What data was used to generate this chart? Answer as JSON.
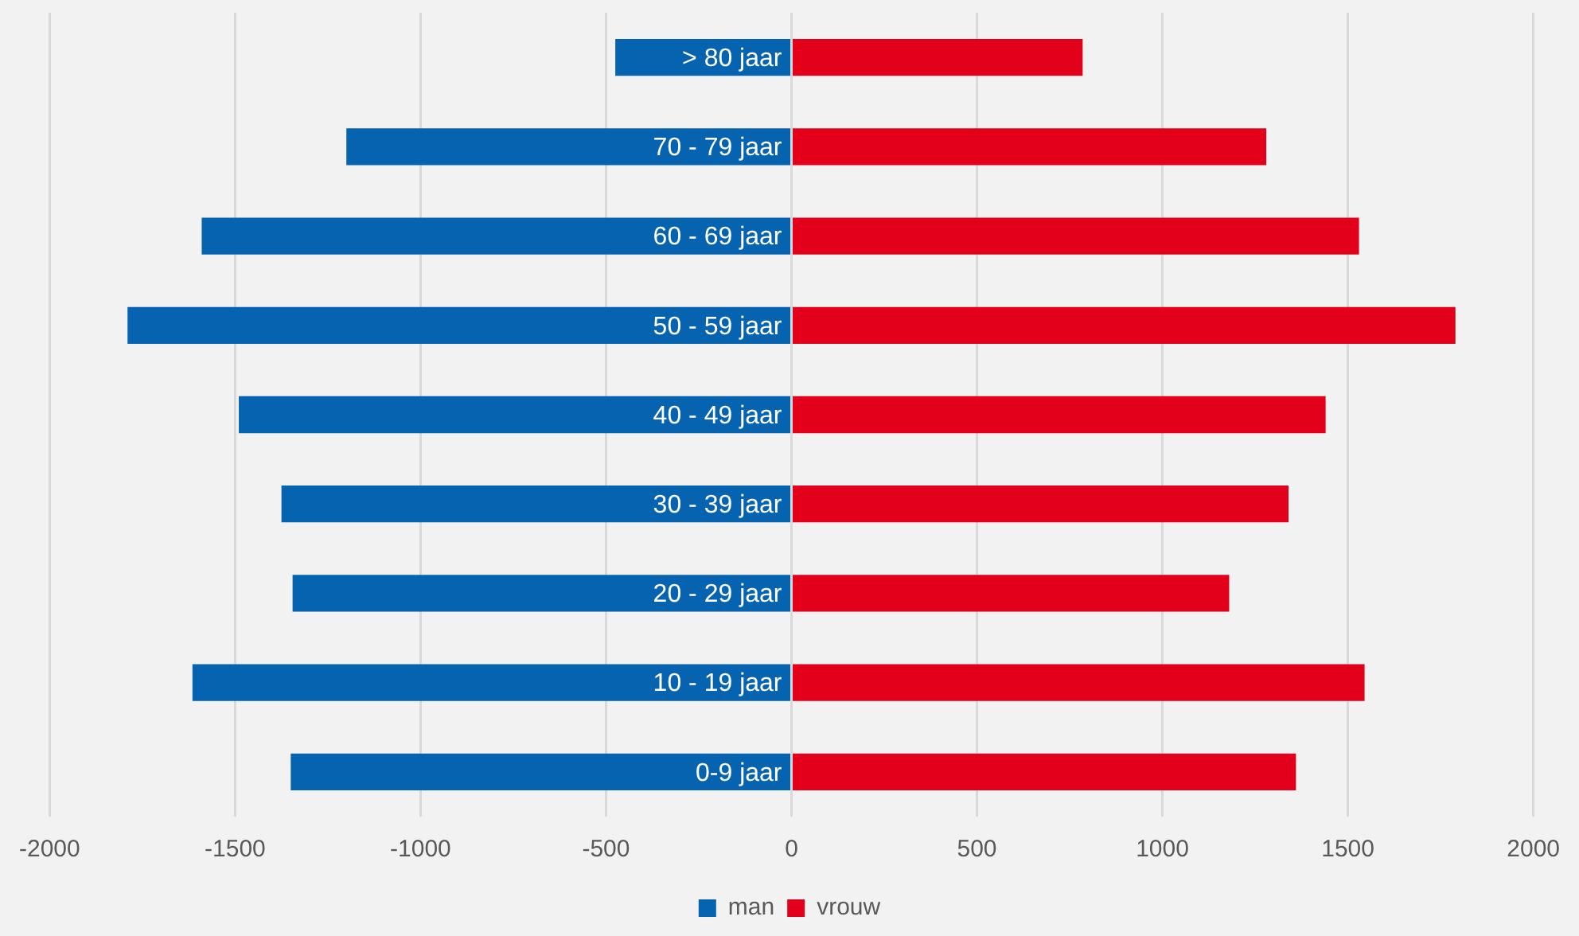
{
  "chart_data": {
    "type": "bar",
    "orientation": "horizontal",
    "stacked": true,
    "categories": [
      "> 80 jaar",
      "70 - 79 jaar",
      "60 - 69 jaar",
      "50 - 59 jaar",
      "40 - 49 jaar",
      "30 - 39 jaar",
      "20 - 29 jaar",
      "10 - 19 jaar",
      "0-9 jaar"
    ],
    "series": [
      {
        "name": "man",
        "color": "#0563b0",
        "values": [
          -475,
          -1200,
          -1590,
          -1790,
          -1490,
          -1375,
          -1345,
          -1615,
          -1350
        ]
      },
      {
        "name": "vrouw",
        "color": "#e2001a",
        "values": [
          785,
          1280,
          1530,
          1790,
          1440,
          1340,
          1180,
          1545,
          1360
        ]
      }
    ],
    "xlim": [
      -2000,
      2000
    ],
    "xticks": [
      -2000,
      -1500,
      -1000,
      -500,
      0,
      500,
      1000,
      1500,
      2000
    ],
    "grid": "x",
    "legend": "bottom"
  }
}
